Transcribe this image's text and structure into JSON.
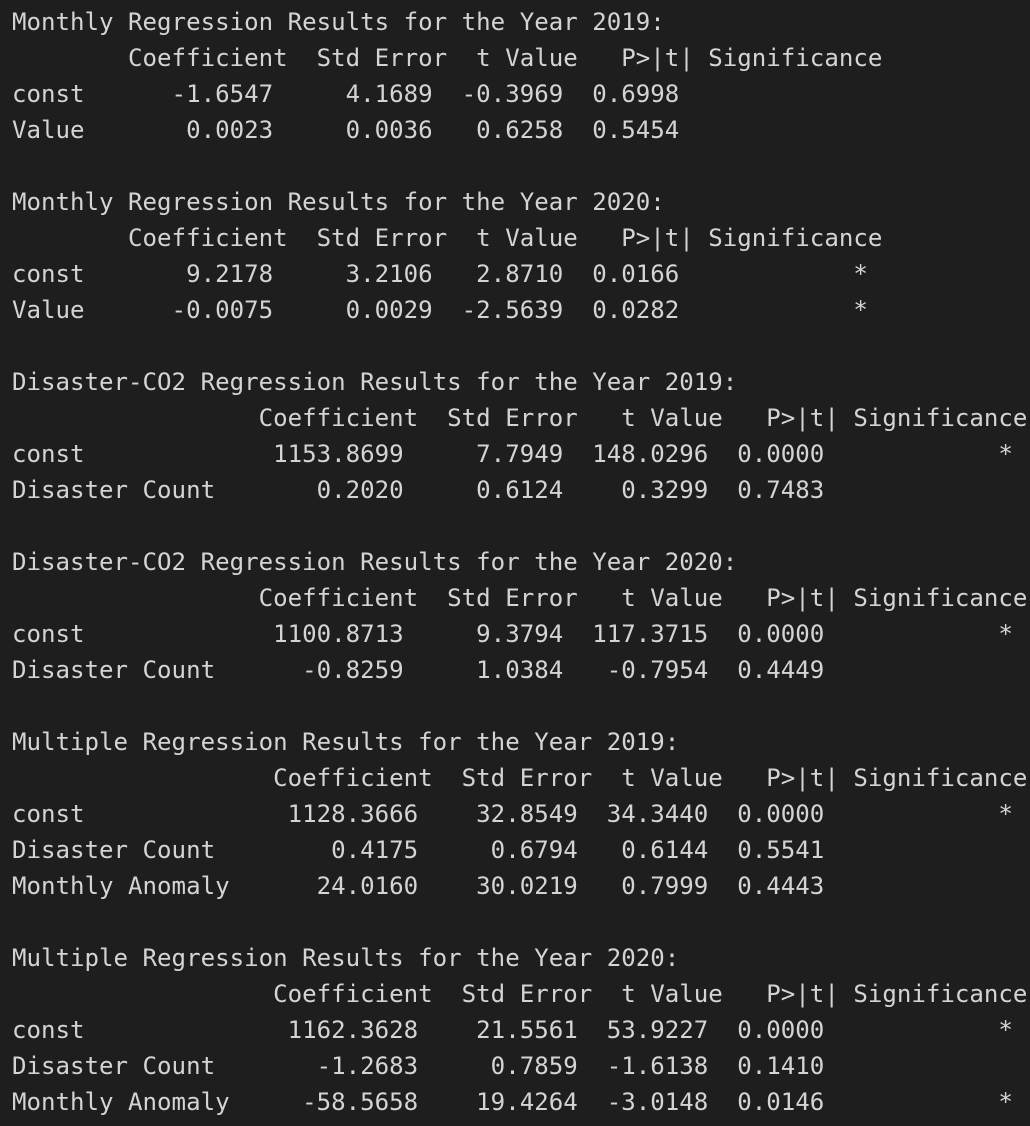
{
  "lines": [
    "Monthly Regression Results for the Year 2019:",
    "        Coefficient  Std Error  t Value   P>|t| Significance",
    "const      -1.6547     4.1689  -0.3969  0.6998",
    "Value       0.0023     0.0036   0.6258  0.5454",
    "",
    "Monthly Regression Results for the Year 2020:",
    "        Coefficient  Std Error  t Value   P>|t| Significance",
    "const       9.2178     3.2106   2.8710  0.0166            *",
    "Value      -0.0075     0.0029  -2.5639  0.0282            *",
    "",
    "Disaster-CO2 Regression Results for the Year 2019:",
    "                 Coefficient  Std Error   t Value   P>|t| Significance",
    "const             1153.8699     7.7949  148.0296  0.0000            *",
    "Disaster Count       0.2020     0.6124    0.3299  0.7483",
    "",
    "Disaster-CO2 Regression Results for the Year 2020:",
    "                 Coefficient  Std Error   t Value   P>|t| Significance",
    "const             1100.8713     9.3794  117.3715  0.0000            *",
    "Disaster Count      -0.8259     1.0384   -0.7954  0.4449",
    "",
    "Multiple Regression Results for the Year 2019:",
    "                  Coefficient  Std Error  t Value   P>|t| Significance",
    "const              1128.3666    32.8549  34.3440  0.0000            *",
    "Disaster Count        0.4175     0.6794   0.6144  0.5541",
    "Monthly Anomaly      24.0160    30.0219   0.7999  0.4443",
    "",
    "Multiple Regression Results for the Year 2020:",
    "                  Coefficient  Std Error  t Value   P>|t| Significance",
    "const              1162.3628    21.5561  53.9227  0.0000            *",
    "Disaster Count       -1.2683     0.7859  -1.6138  0.1410",
    "Monthly Anomaly     -58.5658    19.4264  -3.0148  0.0146            *"
  ]
}
